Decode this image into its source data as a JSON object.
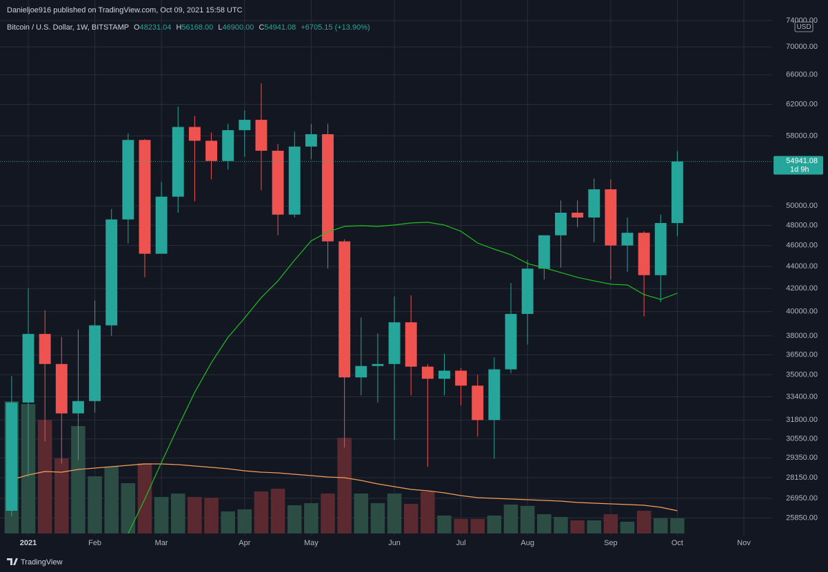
{
  "chart_data": {
    "type": "candlestick",
    "published": "Danieljoe916 published on TradingView.com, Oct 09, 2021 15:58 UTC",
    "title": "Bitcoin / U.S. Dollar, 1W, BITSTAMP",
    "ohlc_legend": [
      {
        "key": "O",
        "value": "48231.04"
      },
      {
        "key": "H",
        "value": "56168.00"
      },
      {
        "key": "L",
        "value": "46900.00"
      },
      {
        "key": "C",
        "value": "54941.08"
      }
    ],
    "change": "+6705.15 (+13.90%)",
    "currency": "USD",
    "countdown": "1d 9h",
    "branding": "TradingView",
    "log_scale": true,
    "grid": true,
    "up_color": "#26a69a",
    "down_color": "#ef5350",
    "up_volume_color": "#2b4d44",
    "down_volume_color": "#5b2a31",
    "ma_color": "#1fc11f",
    "volume_ma_color": "#f5a05a",
    "xlim": [
      -0.7,
      45.7
    ],
    "xticks": [
      {
        "value": 1,
        "label": "2021"
      },
      {
        "value": 5,
        "label": "Feb"
      },
      {
        "value": 9,
        "label": "Mar"
      },
      {
        "value": 14,
        "label": "Apr"
      },
      {
        "value": 18,
        "label": "May"
      },
      {
        "value": 23,
        "label": "Jun"
      },
      {
        "value": 27,
        "label": "Jul"
      },
      {
        "value": 31,
        "label": "Aug"
      },
      {
        "value": 36,
        "label": "Sep"
      },
      {
        "value": 40,
        "label": "Oct"
      },
      {
        "value": 44,
        "label": "Nov"
      }
    ],
    "ylim": [
      24910,
      77300
    ],
    "yticks": [
      {
        "value": 74000,
        "label": "74000.00"
      },
      {
        "value": 70000,
        "label": "70000.00"
      },
      {
        "value": 66000,
        "label": "66000.00"
      },
      {
        "value": 62000,
        "label": "62000.00"
      },
      {
        "value": 58000,
        "label": "58000.00"
      },
      {
        "value": 50000,
        "label": "50000.00"
      },
      {
        "value": 48000,
        "label": "48000.00"
      },
      {
        "value": 46000,
        "label": "46000.00"
      },
      {
        "value": 44000,
        "label": "44000.00"
      },
      {
        "value": 42000,
        "label": "42000.00"
      },
      {
        "value": 40000,
        "label": "40000.00"
      },
      {
        "value": 38000,
        "label": "38000.00"
      },
      {
        "value": 36500,
        "label": "36500.00"
      },
      {
        "value": 35000,
        "label": "35000.00"
      },
      {
        "value": 33400,
        "label": "33400.00"
      },
      {
        "value": 31800,
        "label": "31800.00"
      },
      {
        "value": 30550,
        "label": "30550.00"
      },
      {
        "value": 29350,
        "label": "29350.00"
      },
      {
        "value": 28150,
        "label": "28150.00"
      },
      {
        "value": 26950,
        "label": "26950.00"
      },
      {
        "value": 25850,
        "label": "25850.00"
      }
    ],
    "volume_lim": [
      0,
      250
    ],
    "open": [
      26250,
      33000,
      38150,
      35800,
      32250,
      33100,
      38850,
      48600,
      57500,
      45200,
      51000,
      59100,
      57400,
      55000,
      58700,
      60000,
      56200,
      49100,
      56700,
      58200,
      46400,
      34800,
      35650,
      35800,
      39100,
      35600,
      34700,
      35300,
      34200,
      31800,
      35400,
      39800,
      43800,
      47000,
      49300,
      48800,
      51800,
      46000,
      47250,
      43200,
      48231.04
    ],
    "high": [
      34900,
      42000,
      40100,
      37900,
      38500,
      40950,
      49700,
      58300,
      57600,
      52600,
      61700,
      60500,
      58400,
      59500,
      61200,
      64800,
      57000,
      58500,
      59500,
      59500,
      46600,
      39500,
      38200,
      41300,
      41400,
      35800,
      36600,
      35500,
      35000,
      36300,
      42500,
      44600,
      46700,
      50600,
      50600,
      53000,
      52900,
      48800,
      47400,
      49100,
      56168
    ],
    "low": [
      25950,
      28200,
      30400,
      29000,
      29200,
      32300,
      38000,
      46200,
      43000,
      45300,
      49300,
      50500,
      52900,
      54000,
      55500,
      51700,
      47000,
      48800,
      55200,
      43800,
      30000,
      33500,
      33000,
      30500,
      33500,
      28800,
      33500,
      32800,
      30700,
      29300,
      35100,
      37300,
      42800,
      43900,
      47800,
      46300,
      42800,
      43500,
      39600,
      40800,
      46900
    ],
    "close": [
      33000,
      38150,
      35800,
      32250,
      33100,
      38850,
      48600,
      57500,
      45200,
      51000,
      59100,
      57400,
      55000,
      58700,
      60000,
      56200,
      49100,
      56700,
      58200,
      46400,
      34800,
      35650,
      35800,
      39100,
      35600,
      34700,
      35300,
      34200,
      31800,
      35400,
      39800,
      43800,
      47000,
      49300,
      48800,
      51800,
      46000,
      47250,
      43200,
      48235.93,
      54941.08
    ],
    "volume": [
      192,
      188,
      165,
      109,
      156,
      83,
      97,
      73,
      102,
      53,
      58,
      53,
      52,
      32,
      35,
      61,
      65,
      41,
      44,
      58,
      139,
      58,
      44,
      58,
      43,
      61,
      26,
      21,
      21,
      26,
      42,
      40,
      28,
      24,
      19,
      19,
      28,
      17,
      33,
      22,
      22
    ],
    "ma": [
      null,
      null,
      null,
      null,
      null,
      null,
      null,
      25020,
      26900,
      29070,
      31350,
      33720,
      35900,
      37880,
      39460,
      41200,
      42680,
      44590,
      46450,
      47330,
      47890,
      47960,
      47890,
      48030,
      48240,
      48310,
      48030,
      47400,
      46240,
      45640,
      45110,
      44270,
      43880,
      43440,
      43000,
      42680,
      42380,
      42310,
      41460,
      41040,
      41580
    ],
    "volume_ma": [
      78,
      85,
      90,
      89,
      93,
      95,
      97,
      99,
      101,
      101,
      100,
      98,
      96,
      94,
      91,
      89,
      88,
      86,
      84,
      82,
      81,
      77,
      72,
      68,
      64,
      62,
      59,
      55,
      52,
      51,
      50,
      49,
      48,
      47,
      45,
      44,
      43,
      42,
      41,
      38,
      33
    ]
  }
}
